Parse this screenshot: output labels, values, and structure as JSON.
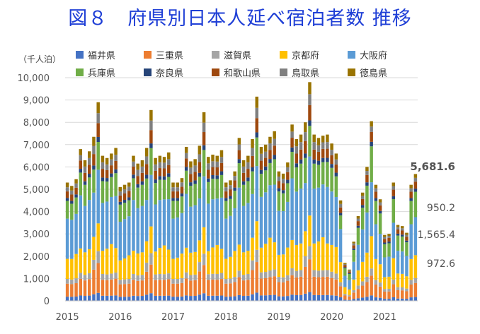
{
  "title": "図８　府県別日本人延べ宿泊者数 推移",
  "chart_data": {
    "type": "bar",
    "stacked": true,
    "unit_label": "（千人泊）",
    "ylim": [
      0,
      10000
    ],
    "yticks": [
      "0",
      "1,000",
      "2,000",
      "3,000",
      "4,000",
      "5,000",
      "6,000",
      "7,000",
      "8,000",
      "9,000",
      "10,000"
    ],
    "yticks_values": [
      0,
      1000,
      2000,
      3000,
      4000,
      5000,
      6000,
      7000,
      8000,
      9000,
      10000
    ],
    "x_start": "2015-01",
    "x_end": "2021-09",
    "xtick_labels": [
      "2015",
      "2016",
      "2017",
      "2018",
      "2019",
      "2020",
      "2021"
    ],
    "grid": true,
    "legend_position": "top",
    "series": [
      {
        "name": "福井県",
        "color": "#4472c4"
      },
      {
        "name": "三重県",
        "color": "#ed7d31"
      },
      {
        "name": "滋賀県",
        "color": "#a5a5a5"
      },
      {
        "name": "京都府",
        "color": "#ffc000"
      },
      {
        "name": "大阪府",
        "color": "#5b9bd5"
      },
      {
        "name": "兵庫県",
        "color": "#70ad47"
      },
      {
        "name": "奈良県",
        "color": "#264478"
      },
      {
        "name": "和歌山県",
        "color": "#9e480e"
      },
      {
        "name": "鳥取県",
        "color": "#7f7f7f"
      },
      {
        "name": "徳島県",
        "color": "#997300"
      }
    ],
    "totals": [
      5300,
      5150,
      5450,
      6800,
      6300,
      6700,
      7350,
      8900,
      6500,
      6400,
      6600,
      6850,
      5100,
      5200,
      5300,
      6500,
      6150,
      6300,
      6850,
      8550,
      6400,
      6500,
      6450,
      6650,
      5300,
      5300,
      5500,
      6900,
      6250,
      6350,
      6950,
      8450,
      6450,
      6550,
      6500,
      6750,
      5300,
      5400,
      5800,
      7300,
      6300,
      6500,
      7250,
      9150,
      6900,
      7000,
      7350,
      7600,
      5800,
      5700,
      6200,
      7900,
      7250,
      7450,
      8000,
      9800,
      7450,
      7300,
      7400,
      7450,
      7050,
      6600,
      4500,
      1700,
      1400,
      2650,
      3800,
      4850,
      6000,
      8050,
      5200,
      4550,
      2950,
      3000,
      5300,
      3400,
      3350,
      3050,
      5200,
      5681.6
    ],
    "share": [
      [
        0.035,
        0.11,
        0.04,
        0.17,
        0.34,
        0.15,
        0.025,
        0.055,
        0.035,
        0.04
      ],
      [
        0.035,
        0.11,
        0.04,
        0.18,
        0.34,
        0.14,
        0.025,
        0.055,
        0.035,
        0.04
      ],
      [
        0.035,
        0.11,
        0.04,
        0.2,
        0.33,
        0.135,
        0.025,
        0.055,
        0.035,
        0.035
      ],
      [
        0.035,
        0.11,
        0.04,
        0.16,
        0.35,
        0.15,
        0.025,
        0.055,
        0.035,
        0.04
      ],
      [
        0.035,
        0.11,
        0.04,
        0.16,
        0.33,
        0.15,
        0.025,
        0.06,
        0.045,
        0.045
      ],
      [
        0.035,
        0.11,
        0.04,
        0.16,
        0.33,
        0.15,
        0.025,
        0.06,
        0.045,
        0.045
      ],
      [
        0.04,
        0.15,
        0.06,
        0.14,
        0.27,
        0.14,
        0.025,
        0.07,
        0.05,
        0.055
      ],
      [
        0.04,
        0.15,
        0.06,
        0.14,
        0.27,
        0.14,
        0.025,
        0.07,
        0.05,
        0.055
      ],
      [
        0.035,
        0.11,
        0.04,
        0.16,
        0.33,
        0.15,
        0.025,
        0.06,
        0.045,
        0.045
      ],
      [
        0.035,
        0.11,
        0.04,
        0.18,
        0.33,
        0.14,
        0.025,
        0.055,
        0.04,
        0.045
      ],
      [
        0.035,
        0.11,
        0.04,
        0.2,
        0.32,
        0.135,
        0.025,
        0.055,
        0.04,
        0.04
      ],
      [
        0.035,
        0.11,
        0.04,
        0.16,
        0.34,
        0.15,
        0.025,
        0.055,
        0.04,
        0.045
      ]
    ],
    "share_pandemic": [
      0.03,
      0.11,
      0.04,
      0.18,
      0.3,
      0.2,
      0.025,
      0.055,
      0.03,
      0.03
    ],
    "pandemic_from_index": 63,
    "annotations": [
      "5,681.6",
      "950.2",
      "1,565.4",
      "972.6"
    ]
  }
}
